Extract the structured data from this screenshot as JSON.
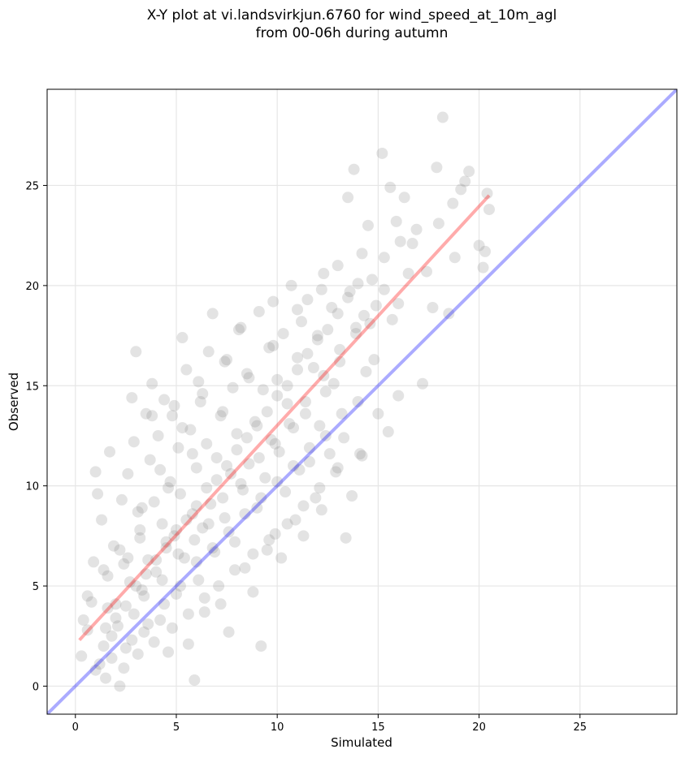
{
  "chart_data": {
    "type": "scatter",
    "title": "X-Y plot at vi.landsvirkjun.6760 for wind_speed_at_10m_agl",
    "subtitle": "from 00-06h during autumn",
    "xlabel": "Simulated",
    "ylabel": "Observed",
    "xlim": [
      -1.4,
      29.8
    ],
    "ylim": [
      -1.4,
      29.8
    ],
    "xticks": [
      "0",
      "5",
      "10",
      "15",
      "20",
      "25"
    ],
    "yticks": [
      "0",
      "5",
      "10",
      "15",
      "20",
      "25"
    ],
    "grid": true,
    "colors": {
      "points": "#808080",
      "identity_line": "#0000ff",
      "fit_line": "#ff0000"
    },
    "identity_line": {
      "x": [
        -1.4,
        29.8
      ],
      "y": [
        -1.4,
        29.8
      ]
    },
    "fit_line": {
      "x": [
        0.2,
        20.5
      ],
      "y": [
        2.3,
        24.5
      ]
    },
    "series": [
      {
        "points": [
          [
            0.3,
            1.5
          ],
          [
            0.4,
            3.3
          ],
          [
            0.6,
            2.8
          ],
          [
            0.8,
            4.2
          ],
          [
            0.9,
            6.2
          ],
          [
            1.0,
            10.7
          ],
          [
            1.1,
            9.6
          ],
          [
            1.3,
            8.3
          ],
          [
            1.2,
            1.1
          ],
          [
            1.4,
            2.0
          ],
          [
            1.5,
            0.4
          ],
          [
            1.6,
            5.5
          ],
          [
            1.7,
            11.7
          ],
          [
            1.8,
            2.5
          ],
          [
            1.9,
            7.0
          ],
          [
            2.0,
            4.1
          ],
          [
            2.1,
            3.0
          ],
          [
            2.2,
            0.0
          ],
          [
            2.3,
            9.3
          ],
          [
            2.4,
            6.1
          ],
          [
            2.5,
            1.9
          ],
          [
            2.6,
            10.6
          ],
          [
            2.7,
            5.2
          ],
          [
            2.8,
            14.4
          ],
          [
            2.9,
            3.6
          ],
          [
            3.0,
            16.7
          ],
          [
            3.1,
            8.7
          ],
          [
            3.2,
            7.4
          ],
          [
            3.3,
            4.8
          ],
          [
            3.4,
            2.7
          ],
          [
            3.5,
            13.6
          ],
          [
            3.6,
            6.3
          ],
          [
            3.7,
            11.3
          ],
          [
            3.8,
            15.1
          ],
          [
            3.9,
            9.2
          ],
          [
            4.0,
            5.7
          ],
          [
            4.1,
            12.5
          ],
          [
            4.2,
            3.3
          ],
          [
            4.3,
            8.1
          ],
          [
            4.4,
            14.3
          ],
          [
            4.5,
            6.9
          ],
          [
            4.6,
            1.7
          ],
          [
            4.7,
            10.2
          ],
          [
            4.8,
            13.5
          ],
          [
            4.9,
            7.5
          ],
          [
            5.0,
            4.6
          ],
          [
            5.1,
            11.9
          ],
          [
            5.2,
            9.6
          ],
          [
            5.3,
            17.4
          ],
          [
            5.4,
            6.4
          ],
          [
            5.5,
            15.8
          ],
          [
            5.6,
            2.1
          ],
          [
            5.7,
            12.8
          ],
          [
            5.8,
            8.6
          ],
          [
            5.9,
            0.3
          ],
          [
            6.0,
            10.9
          ],
          [
            6.1,
            5.3
          ],
          [
            6.2,
            14.2
          ],
          [
            6.3,
            7.9
          ],
          [
            6.4,
            3.7
          ],
          [
            6.5,
            12.1
          ],
          [
            6.6,
            16.7
          ],
          [
            6.7,
            9.1
          ],
          [
            6.8,
            18.6
          ],
          [
            6.9,
            6.7
          ],
          [
            7.0,
            11.4
          ],
          [
            7.2,
            4.1
          ],
          [
            7.3,
            13.7
          ],
          [
            7.4,
            8.4
          ],
          [
            7.5,
            16.3
          ],
          [
            7.6,
            2.7
          ],
          [
            7.7,
            10.6
          ],
          [
            7.8,
            14.9
          ],
          [
            7.9,
            7.2
          ],
          [
            8.0,
            12.6
          ],
          [
            8.2,
            17.9
          ],
          [
            8.3,
            9.8
          ],
          [
            8.4,
            5.9
          ],
          [
            8.5,
            15.6
          ],
          [
            8.6,
            11.1
          ],
          [
            8.8,
            4.7
          ],
          [
            8.9,
            13.2
          ],
          [
            9.0,
            8.9
          ],
          [
            9.1,
            18.7
          ],
          [
            9.2,
            2.0
          ],
          [
            9.3,
            14.8
          ],
          [
            9.4,
            10.4
          ],
          [
            9.5,
            6.8
          ],
          [
            9.6,
            16.9
          ],
          [
            9.7,
            12.3
          ],
          [
            9.8,
            19.2
          ],
          [
            9.9,
            7.6
          ],
          [
            10.0,
            15.3
          ],
          [
            10.1,
            11.7
          ],
          [
            10.2,
            6.4
          ],
          [
            10.3,
            17.6
          ],
          [
            10.4,
            9.7
          ],
          [
            10.5,
            14.1
          ],
          [
            10.7,
            20.0
          ],
          [
            10.8,
            12.9
          ],
          [
            10.9,
            8.3
          ],
          [
            11.0,
            16.4
          ],
          [
            11.1,
            10.8
          ],
          [
            11.2,
            18.2
          ],
          [
            11.3,
            7.5
          ],
          [
            11.4,
            13.6
          ],
          [
            11.5,
            19.3
          ],
          [
            11.6,
            11.2
          ],
          [
            11.8,
            15.9
          ],
          [
            11.9,
            9.4
          ],
          [
            12.0,
            17.3
          ],
          [
            12.1,
            13.0
          ],
          [
            12.2,
            8.8
          ],
          [
            12.3,
            20.6
          ],
          [
            12.4,
            14.7
          ],
          [
            12.6,
            11.6
          ],
          [
            12.7,
            18.9
          ],
          [
            12.8,
            15.1
          ],
          [
            12.9,
            10.7
          ],
          [
            13.0,
            21.0
          ],
          [
            13.1,
            16.8
          ],
          [
            13.3,
            12.4
          ],
          [
            13.4,
            7.4
          ],
          [
            13.5,
            24.4
          ],
          [
            13.6,
            19.7
          ],
          [
            13.7,
            9.5
          ],
          [
            13.8,
            25.8
          ],
          [
            13.9,
            17.6
          ],
          [
            14.0,
            14.2
          ],
          [
            14.1,
            11.6
          ],
          [
            14.2,
            21.6
          ],
          [
            14.3,
            18.5
          ],
          [
            14.4,
            15.7
          ],
          [
            14.5,
            23.0
          ],
          [
            14.7,
            20.3
          ],
          [
            14.8,
            16.3
          ],
          [
            14.9,
            19.0
          ],
          [
            15.0,
            13.6
          ],
          [
            15.2,
            26.6
          ],
          [
            15.3,
            21.4
          ],
          [
            15.5,
            12.7
          ],
          [
            15.6,
            24.9
          ],
          [
            15.7,
            18.3
          ],
          [
            15.9,
            23.2
          ],
          [
            16.0,
            14.5
          ],
          [
            16.1,
            22.2
          ],
          [
            16.3,
            24.4
          ],
          [
            16.5,
            20.6
          ],
          [
            16.7,
            22.1
          ],
          [
            16.9,
            22.8
          ],
          [
            17.2,
            15.1
          ],
          [
            17.4,
            20.7
          ],
          [
            17.7,
            18.9
          ],
          [
            17.9,
            25.9
          ],
          [
            18.0,
            23.1
          ],
          [
            18.2,
            28.4
          ],
          [
            18.5,
            18.6
          ],
          [
            18.7,
            24.1
          ],
          [
            18.8,
            21.4
          ],
          [
            19.1,
            24.8
          ],
          [
            19.3,
            25.2
          ],
          [
            19.5,
            25.7
          ],
          [
            20.0,
            22.0
          ],
          [
            20.2,
            20.9
          ],
          [
            20.3,
            21.7
          ],
          [
            20.4,
            24.6
          ],
          [
            20.5,
            23.8
          ],
          [
            2.0,
            3.4
          ],
          [
            2.5,
            4.0
          ],
          [
            3.0,
            5.0
          ],
          [
            3.5,
            5.6
          ],
          [
            4.0,
            6.3
          ],
          [
            4.5,
            7.2
          ],
          [
            5.0,
            7.8
          ],
          [
            5.5,
            8.3
          ],
          [
            6.0,
            9.0
          ],
          [
            6.5,
            9.9
          ],
          [
            7.0,
            10.3
          ],
          [
            7.5,
            11.0
          ],
          [
            8.0,
            11.8
          ],
          [
            8.5,
            12.4
          ],
          [
            9.0,
            13.0
          ],
          [
            9.5,
            13.7
          ],
          [
            10.0,
            14.5
          ],
          [
            10.5,
            15.0
          ],
          [
            11.0,
            15.8
          ],
          [
            11.5,
            16.6
          ],
          [
            12.0,
            17.5
          ],
          [
            12.5,
            17.8
          ],
          [
            13.0,
            18.6
          ],
          [
            13.5,
            19.4
          ],
          [
            14.0,
            20.1
          ],
          [
            1.5,
            2.9
          ],
          [
            2.8,
            2.3
          ],
          [
            3.6,
            3.1
          ],
          [
            4.4,
            4.1
          ],
          [
            5.2,
            5.0
          ],
          [
            6.0,
            6.2
          ],
          [
            6.8,
            6.9
          ],
          [
            7.6,
            7.7
          ],
          [
            8.4,
            8.6
          ],
          [
            9.2,
            9.4
          ],
          [
            10.0,
            10.2
          ],
          [
            10.8,
            11.0
          ],
          [
            11.6,
            11.9
          ],
          [
            12.4,
            12.5
          ],
          [
            13.2,
            13.6
          ],
          [
            3.2,
            7.8
          ],
          [
            4.6,
            9.9
          ],
          [
            5.8,
            11.6
          ],
          [
            7.2,
            13.5
          ],
          [
            8.6,
            15.4
          ],
          [
            9.8,
            17.0
          ],
          [
            11.0,
            18.8
          ],
          [
            12.2,
            19.8
          ],
          [
            1.0,
            0.8
          ],
          [
            1.8,
            1.4
          ],
          [
            2.4,
            0.9
          ],
          [
            3.1,
            1.6
          ],
          [
            3.9,
            2.2
          ],
          [
            4.8,
            2.9
          ],
          [
            5.6,
            3.6
          ],
          [
            6.4,
            4.4
          ],
          [
            7.1,
            5.0
          ],
          [
            7.9,
            5.8
          ],
          [
            8.8,
            6.6
          ],
          [
            9.6,
            7.3
          ],
          [
            10.5,
            8.1
          ],
          [
            11.3,
            9.0
          ],
          [
            12.1,
            9.9
          ],
          [
            13.0,
            10.9
          ],
          [
            14.2,
            11.5
          ],
          [
            2.2,
            6.8
          ],
          [
            3.3,
            8.9
          ],
          [
            4.2,
            10.8
          ],
          [
            5.3,
            12.9
          ],
          [
            6.3,
            14.6
          ],
          [
            7.4,
            16.2
          ],
          [
            8.1,
            17.8
          ],
          [
            0.6,
            4.5
          ],
          [
            1.4,
            5.8
          ],
          [
            2.9,
            12.2
          ],
          [
            3.8,
            13.5
          ],
          [
            4.9,
            14.0
          ],
          [
            6.1,
            15.2
          ],
          [
            1.6,
            3.9
          ],
          [
            2.6,
            6.4
          ],
          [
            3.4,
            4.5
          ],
          [
            4.3,
            5.3
          ],
          [
            5.1,
            6.6
          ],
          [
            5.9,
            7.3
          ],
          [
            6.6,
            8.1
          ],
          [
            7.3,
            9.4
          ],
          [
            8.2,
            10.1
          ],
          [
            9.1,
            11.4
          ],
          [
            9.9,
            12.1
          ],
          [
            10.6,
            13.1
          ],
          [
            11.4,
            14.2
          ],
          [
            12.3,
            15.5
          ],
          [
            13.1,
            16.2
          ],
          [
            13.9,
            17.9
          ],
          [
            14.6,
            18.1
          ],
          [
            15.3,
            19.8
          ],
          [
            16.0,
            19.1
          ]
        ]
      }
    ]
  }
}
